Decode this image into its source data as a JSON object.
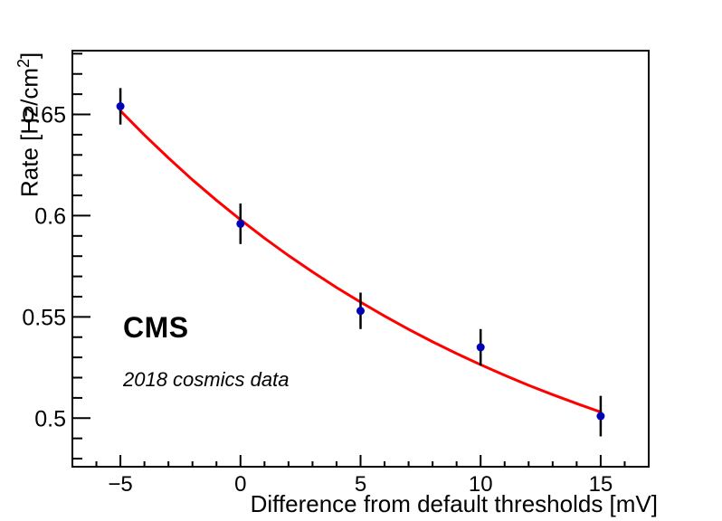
{
  "chart_data": {
    "type": "scatter",
    "title": "",
    "xlabel": "Difference from default thresholds [mV]",
    "ylabel": "Rate [Hz/cm2]",
    "ylabel_parts": {
      "main": "Rate [Hz/cm",
      "sup": "2",
      "end": "]"
    },
    "xlim": [
      -7,
      17
    ],
    "ylim": [
      0.476,
      0.6815
    ],
    "grid": false,
    "legend": "none",
    "x_major_ticks": {
      "values": [
        -5,
        0,
        5,
        10,
        15
      ],
      "labels": [
        "−5",
        "0",
        "5",
        "10",
        "15"
      ]
    },
    "x_minor_step": 1,
    "y_major_ticks": {
      "values": [
        0.5,
        0.55,
        0.6,
        0.65
      ],
      "labels": [
        "0.5",
        "0.55",
        "0.6",
        "0.65"
      ]
    },
    "y_minor_step": 0.01,
    "series": [
      {
        "name": "measured-rates",
        "type": "scatter-errorbar",
        "marker": "full-circle",
        "color": "#0000b8",
        "x": [
          -5,
          0,
          5,
          10,
          15
        ],
        "y": [
          0.654,
          0.596,
          0.553,
          0.535,
          0.501
        ],
        "yerr": [
          0.009,
          0.01,
          0.009,
          0.009,
          0.01
        ]
      },
      {
        "name": "exponential-fit-curve",
        "type": "line",
        "color": "#ff0000",
        "x": [
          -5,
          -4,
          -3,
          -2,
          -1,
          0,
          1,
          2,
          3,
          4,
          5,
          6,
          7,
          8,
          9,
          10,
          11,
          12,
          13,
          14,
          15
        ],
        "y": [
          0.6518,
          0.6398,
          0.6285,
          0.6177,
          0.6076,
          0.598,
          0.5889,
          0.5803,
          0.5722,
          0.5645,
          0.5573,
          0.5504,
          0.5439,
          0.5377,
          0.5319,
          0.5264,
          0.5212,
          0.5162,
          0.5116,
          0.5072,
          0.503
        ]
      }
    ],
    "annotations": [
      {
        "id": "experiment",
        "text": "CMS"
      },
      {
        "id": "dataset",
        "text": "2018 cosmics data"
      }
    ]
  },
  "colors": {
    "background": "#ffffff",
    "frame": "#000000",
    "text": "#000000",
    "marker": "#0000b8",
    "fit": "#ff0000"
  }
}
